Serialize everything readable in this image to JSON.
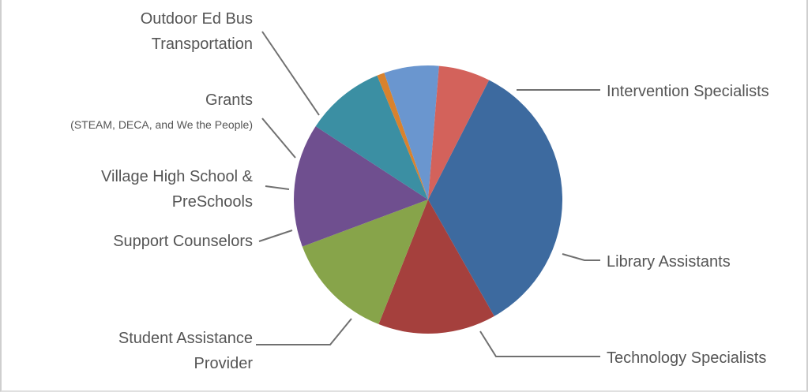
{
  "chart_data": {
    "type": "pie",
    "title": "",
    "legend": "none",
    "labels_lines": [
      [
        "Intervention Specialists"
      ],
      [
        "Library Assistants"
      ],
      [
        "Technology Specialists"
      ],
      [
        "Student Assistance",
        "Provider"
      ],
      [
        "Support Counselors"
      ],
      [
        "Village High School &",
        "PreSchools"
      ],
      [
        "Grants",
        "(STEAM, DECA, and We the People)"
      ],
      [
        "Outdoor Ed Bus",
        "Transportation"
      ]
    ],
    "categories": [
      "Intervention Specialists",
      "Library Assistants",
      "Technology Specialists",
      "Student Assistance Provider",
      "Support Counselors",
      "Village High School & PreSchools",
      "Grants (STEAM, DECA, and We the People)",
      "Outdoor Ed Bus Transportation"
    ],
    "values": [
      34.3,
      14.2,
      13.3,
      14.9,
      9.6,
      0.9,
      6.6,
      6.2
    ],
    "colors": [
      "#3d6a9f",
      "#a5403d",
      "#87a44a",
      "#6f4f8f",
      "#3b8fa3",
      "#d8822e",
      "#6a96cf",
      "#d3625b"
    ]
  }
}
